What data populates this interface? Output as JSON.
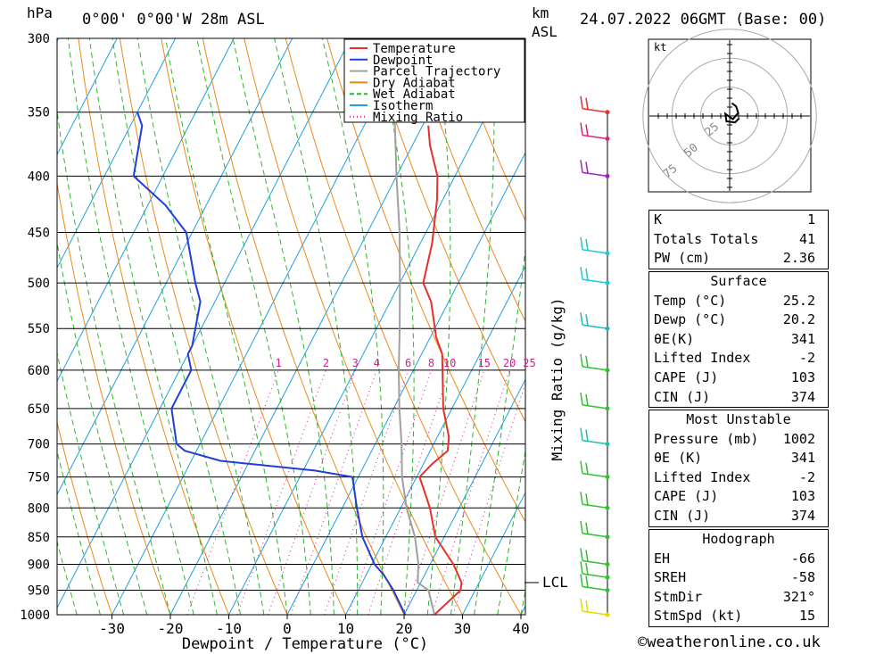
{
  "header": {
    "hpa_unit": "hPa",
    "location": "0°00' 0°00'W 28m ASL",
    "km_unit": "km",
    "asl": "ASL",
    "datetime": "24.07.2022 06GMT (Base: 00)"
  },
  "chart_data": {
    "type": "line",
    "title": "",
    "xlabel": "Dewpoint / Temperature (°C)",
    "ylabel": "hPa",
    "right_axis_label": "Mixing Ratio (g/kg)",
    "xlim": [
      -40,
      40
    ],
    "ylim": [
      1000,
      300
    ],
    "y_scale": "log",
    "skew": true,
    "grid": true,
    "legend_position": "top-center",
    "x_ticks": [
      -30,
      -20,
      -10,
      0,
      10,
      20,
      30,
      40
    ],
    "pressure_levels": [
      300,
      350,
      400,
      450,
      500,
      550,
      600,
      650,
      700,
      750,
      800,
      850,
      900,
      950,
      1000
    ],
    "mixing_ratio_labels": [
      "1",
      "2",
      "3",
      "4",
      "6",
      "8",
      "10",
      "15",
      "20",
      "25"
    ],
    "mixing_ratio_label_pressure": 600,
    "lcl_label": "LCL",
    "lcl_pressure": 935,
    "series": [
      {
        "name": "Temperature",
        "color": "#e8302a",
        "points": [
          [
            25.2,
            1000
          ],
          [
            27.5,
            950
          ],
          [
            27,
            935
          ],
          [
            24,
            900
          ],
          [
            18.5,
            850
          ],
          [
            15,
            800
          ],
          [
            10.5,
            750
          ],
          [
            11.5,
            730
          ],
          [
            13,
            710
          ],
          [
            12,
            690
          ],
          [
            8.5,
            650
          ],
          [
            5,
            600
          ],
          [
            3.5,
            580
          ],
          [
            1,
            560
          ],
          [
            -3,
            520
          ],
          [
            -6,
            500
          ],
          [
            -8,
            460
          ],
          [
            -11,
            420
          ],
          [
            -13,
            400
          ],
          [
            -17,
            375
          ],
          [
            -19,
            360
          ]
        ]
      },
      {
        "name": "Dewpoint",
        "color": "#1f3fd6",
        "points": [
          [
            20.2,
            1000
          ],
          [
            16,
            950
          ],
          [
            13,
            920
          ],
          [
            10.5,
            900
          ],
          [
            6,
            850
          ],
          [
            2.5,
            800
          ],
          [
            -1,
            750
          ],
          [
            -8,
            740
          ],
          [
            -25,
            725
          ],
          [
            -32,
            710
          ],
          [
            -34,
            700
          ],
          [
            -38,
            650
          ],
          [
            -38,
            600
          ],
          [
            -40,
            580
          ],
          [
            -40,
            570
          ],
          [
            -42.5,
            520
          ],
          [
            -45,
            500
          ],
          [
            -51,
            450
          ],
          [
            -57,
            425
          ],
          [
            -65,
            400
          ],
          [
            -68,
            360
          ],
          [
            -70,
            350
          ]
        ]
      },
      {
        "name": "Parcel Trajectory",
        "color": "#a0a0a0",
        "points": [
          [
            25.2,
            1000
          ],
          [
            22,
            950
          ],
          [
            19.5,
            935
          ],
          [
            18,
            900
          ],
          [
            15,
            850
          ],
          [
            11,
            800
          ],
          [
            7.5,
            750
          ],
          [
            4.5,
            700
          ],
          [
            1,
            650
          ],
          [
            -2.5,
            600
          ],
          [
            -6,
            550
          ],
          [
            -10,
            500
          ],
          [
            -14.5,
            450
          ],
          [
            -20,
            400
          ],
          [
            -26,
            350
          ],
          [
            -34,
            300
          ]
        ]
      }
    ],
    "legend": [
      "Temperature",
      "Dewpoint",
      "Parcel Trajectory",
      "Dry Adiabat",
      "Wet Adiabat",
      "Isotherm",
      "Mixing Ratio"
    ],
    "background_line_colors": {
      "Dry Adiabat": "#e88a1a",
      "Wet Adiabat": "#2fb52f",
      "Isotherm": "#1ea0e0",
      "Mixing Ratio": "#d0208a"
    },
    "wind_barbs": [
      {
        "pressure": 1000,
        "color": "#e8d800"
      },
      {
        "pressure": 950,
        "color": "#30c030"
      },
      {
        "pressure": 925,
        "color": "#30c030"
      },
      {
        "pressure": 900,
        "color": "#30c030"
      },
      {
        "pressure": 850,
        "color": "#30c030"
      },
      {
        "pressure": 800,
        "color": "#30c030"
      },
      {
        "pressure": 750,
        "color": "#30c030"
      },
      {
        "pressure": 700,
        "color": "#20c0a0"
      },
      {
        "pressure": 650,
        "color": "#30c030"
      },
      {
        "pressure": 600,
        "color": "#30c030"
      },
      {
        "pressure": 550,
        "color": "#20b8b8"
      },
      {
        "pressure": 500,
        "color": "#20c8d0"
      },
      {
        "pressure": 470,
        "color": "#20c8d0"
      },
      {
        "pressure": 400,
        "color": "#a020c0"
      },
      {
        "pressure": 370,
        "color": "#e02080"
      },
      {
        "pressure": 350,
        "color": "#e83030"
      }
    ]
  },
  "hodograph": {
    "unit": "kt",
    "ring_labels": [
      "25",
      "50",
      "75"
    ],
    "trace": [
      [
        0.2,
        -1.2
      ],
      [
        0.6,
        -0.9
      ],
      [
        0.8,
        -0.3
      ],
      [
        0.3,
        0.3
      ],
      [
        -0.4,
        -0.2
      ],
      [
        -0.3,
        0.5
      ],
      [
        0.5,
        0.6
      ],
      [
        0.9,
        0.2
      ]
    ]
  },
  "indices": {
    "rows": [
      {
        "label": "K",
        "value": "1"
      },
      {
        "label": "Totals Totals",
        "value": "41"
      },
      {
        "label": "PW (cm)",
        "value": "2.36"
      }
    ],
    "surface": {
      "title": "Surface",
      "rows": [
        {
          "label": "Temp (°C)",
          "value": "25.2"
        },
        {
          "label": "Dewp (°C)",
          "value": "20.2"
        },
        {
          "label": "θE(K)",
          "value": "341"
        },
        {
          "label": "Lifted Index",
          "value": "-2"
        },
        {
          "label": "CAPE (J)",
          "value": "103"
        },
        {
          "label": "CIN (J)",
          "value": "374"
        }
      ]
    },
    "most_unstable": {
      "title": "Most Unstable",
      "rows": [
        {
          "label": "Pressure (mb)",
          "value": "1002"
        },
        {
          "label": "θE (K)",
          "value": "341"
        },
        {
          "label": "Lifted Index",
          "value": "-2"
        },
        {
          "label": "CAPE (J)",
          "value": "103"
        },
        {
          "label": "CIN (J)",
          "value": "374"
        }
      ]
    },
    "hodograph_box": {
      "title": "Hodograph",
      "rows": [
        {
          "label": "EH",
          "value": "-66"
        },
        {
          "label": "SREH",
          "value": "-58"
        },
        {
          "label": "StmDir",
          "value": "321°"
        },
        {
          "label": "StmSpd (kt)",
          "value": "15"
        }
      ]
    }
  },
  "footer": {
    "copyright": "©weatheronline.co.uk"
  }
}
